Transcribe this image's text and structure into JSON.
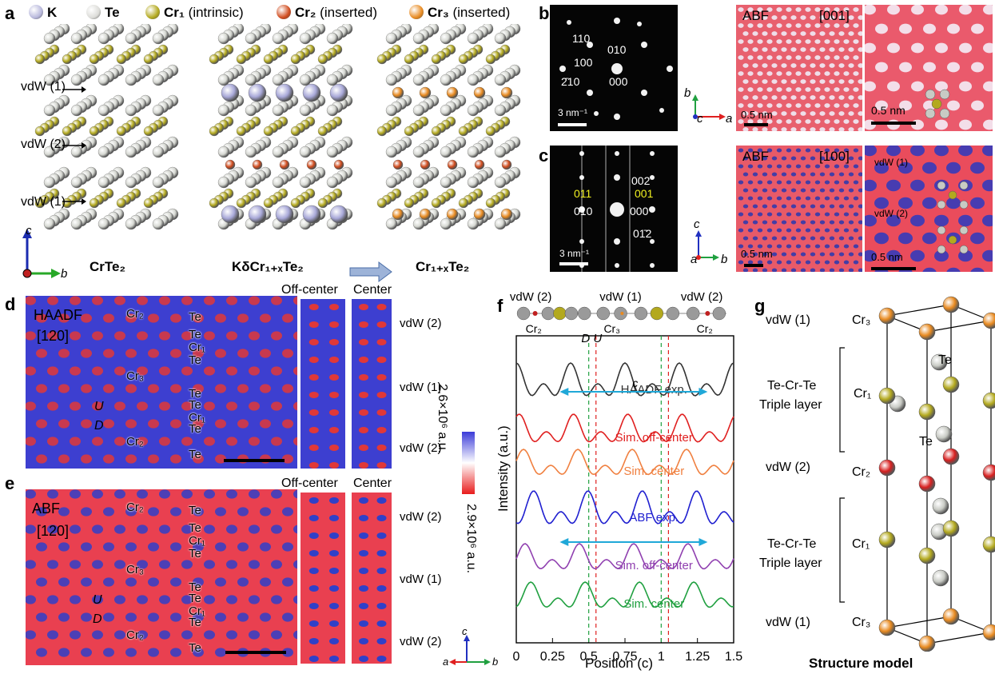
{
  "panels": {
    "a": {
      "letter": "a",
      "legend": [
        {
          "name": "K",
          "suffix": "",
          "color": "#b8b8dc"
        },
        {
          "name": "Te",
          "suffix": "",
          "color": "#dcdcd8"
        },
        {
          "name": "Cr₁",
          "suffix": " (intrinsic)",
          "color": "#b3a91e"
        },
        {
          "name": "Cr₂",
          "suffix": " (inserted)",
          "color": "#d04a1c"
        },
        {
          "name": "Cr₃",
          "suffix": " (inserted)",
          "color": "#e88a20"
        }
      ],
      "vdw_labels": [
        "vdW (1)",
        "vdW (2)",
        "vdW (1)"
      ],
      "struct_titles": [
        "CrTe₂",
        "KδCr₁₊ₓTe₂",
        "Cr₁₊ₓTe₂"
      ],
      "axes": [
        "c",
        "b"
      ]
    },
    "b": {
      "letter": "b",
      "diffraction_spots": [
        "110",
        "010",
        "100",
        "000",
        "2̄10"
      ],
      "scale_diff": "3 nm⁻¹",
      "axes": [
        "b",
        "c",
        "a"
      ],
      "abf_label": "ABF",
      "zone": "[001]",
      "scale_abf": "0.5 nm",
      "scale_zoom": "0.5 nm"
    },
    "c": {
      "letter": "c",
      "diffraction_spots": [
        "002",
        "011",
        "001",
        "010",
        "000",
        "01̄2"
      ],
      "scale_diff": "3 nm⁻¹",
      "axes": [
        "c",
        "a",
        "b"
      ],
      "abf_label": "ABF",
      "zone": "[100]",
      "scale_abf": "0.5 nm",
      "scale_zoom": "0.5 nm",
      "zoom_labels": [
        "vdW (1)",
        "vdW (2)"
      ]
    },
    "d": {
      "letter": "d",
      "mode": "HAADF",
      "zone": "[120]",
      "labels": [
        "Cr₂",
        "Te",
        "Te",
        "Cr₁",
        "Te",
        "Cr₃",
        "Te",
        "Te",
        "Cr₁",
        "Te",
        "Cr₂",
        "Te"
      ],
      "u": "U",
      "dd": "D",
      "strip_titles": [
        "Off-center",
        "Center"
      ],
      "vdw": [
        "vdW (2)",
        "vdW (1)",
        "vdW (2)"
      ]
    },
    "e": {
      "letter": "e",
      "mode": "ABF",
      "zone": "[120]",
      "labels": [
        "Cr₂",
        "Te",
        "Te",
        "Cr₁",
        "Te",
        "Cr₃",
        "Te",
        "Te",
        "Cr₁",
        "Te",
        "Cr₂",
        "Te"
      ],
      "u": "U",
      "dd": "D",
      "strip_titles": [
        "Off-center",
        "Center"
      ],
      "vdw": [
        "vdW (2)",
        "vdW (1)",
        "vdW (2)"
      ],
      "axes": [
        "c",
        "a",
        "b"
      ]
    },
    "colorbar": {
      "top": "2.6×10⁶ a.u.",
      "bottom": "2.9×10⁶ a.u."
    },
    "f": {
      "letter": "f",
      "top_labels": [
        "vdW (2)",
        "vdW (1)",
        "vdW (2)"
      ],
      "atom_labels": [
        "Cr₂",
        "Cr₃",
        "Cr₂"
      ],
      "du": "D U",
      "curves": [
        "HAADF exp.",
        "Sim. off-center",
        "Sim. center",
        "ABF exp.",
        "Sim. off-center",
        "Sim. center"
      ],
      "c_label": "c",
      "ylabel": "Intensity (a.u.)",
      "xlabel": "Position (c)",
      "xticks": [
        "0",
        "0.25",
        "0.5",
        "0.75",
        "1",
        "1.25",
        "1.5"
      ]
    },
    "g": {
      "letter": "g",
      "labels": [
        "vdW (1)",
        "Cr₃",
        "Te",
        "Te-Cr-Te",
        "Triple layer",
        "Cr₁",
        "Te",
        "vdW (2)",
        "Cr₂",
        "Te-Cr-Te",
        "Triple layer",
        "Cr₁",
        "vdW (1)",
        "Cr₃"
      ],
      "caption": "Structure model"
    }
  },
  "chart_data": {
    "type": "line",
    "title": "",
    "xlabel": "Position (c)",
    "ylabel": "Intensity (a.u.)",
    "xlim": [
      0,
      1.5
    ],
    "x_ticks": [
      0,
      0.25,
      0.5,
      0.75,
      1,
      1.25,
      1.5
    ],
    "series": [
      {
        "name": "HAADF exp.",
        "color": "#333333"
      },
      {
        "name": "Sim. off-center",
        "color": "#e02020"
      },
      {
        "name": "Sim. center",
        "color": "#f08040"
      },
      {
        "name": "ABF exp.",
        "color": "#2020d0"
      },
      {
        "name": "Sim. off-center",
        "color": "#9040b0"
      },
      {
        "name": "Sim. center",
        "color": "#20a040"
      }
    ]
  }
}
